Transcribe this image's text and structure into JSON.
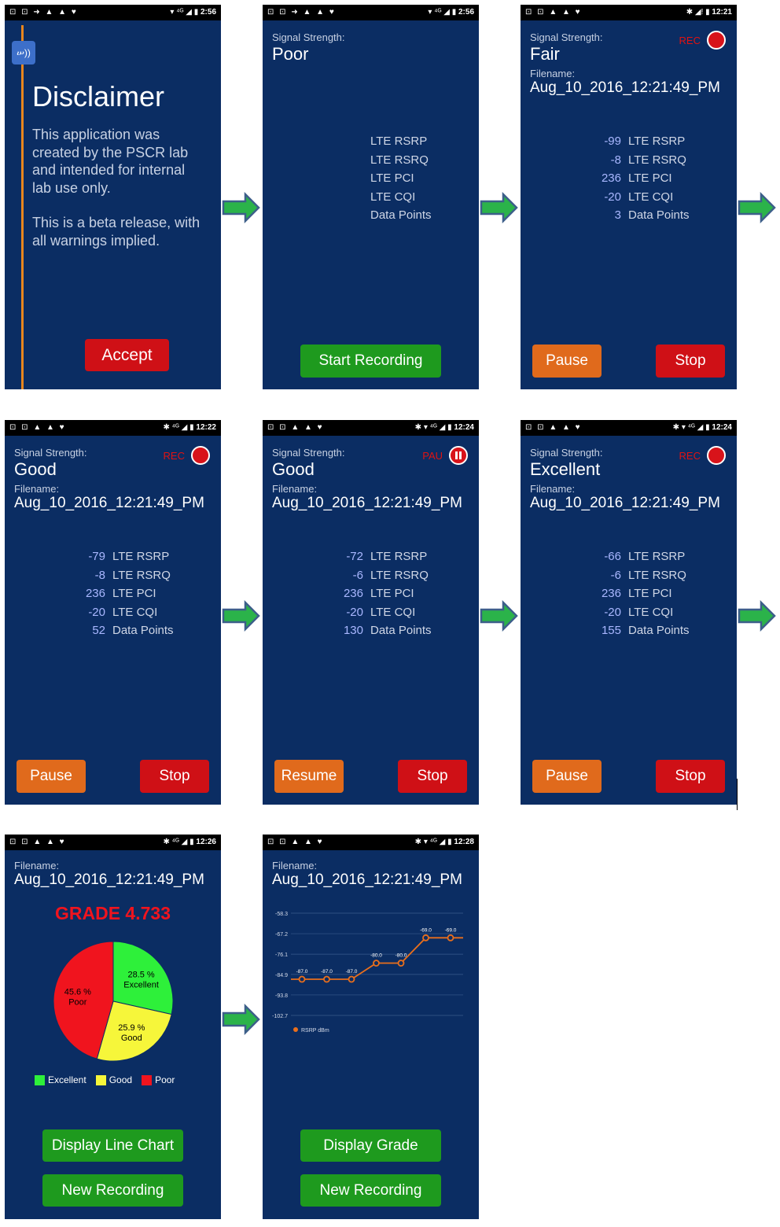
{
  "status_bars": {
    "s1": {
      "icons": "⊡ ⊡ ➜ ▲ ▲ ♥",
      "time": "2:56",
      "right": "▾ ⁴ᴳ ◢ ▮"
    },
    "s2": {
      "icons": "⊡ ⊡ ➜ ▲ ▲ ♥",
      "time": "2:56",
      "right": "▾ ⁴ᴳ ◢ ▮"
    },
    "s3": {
      "icons": "⊡ ⊡ ▲ ▲ ♥",
      "time": "12:21",
      "right": "✱ ◢! ▮"
    },
    "s4": {
      "icons": "⊡ ⊡ ▲ ▲ ♥",
      "time": "12:22",
      "right": "✱ ⁴ᴳ ◢ ▮"
    },
    "s5": {
      "icons": "⊡ ⊡ ▲ ▲ ♥",
      "time": "12:24",
      "right": "✱ ▾ ⁴ᴳ ◢ ▮"
    },
    "s6": {
      "icons": "⊡ ⊡ ▲ ▲ ♥",
      "time": "12:24",
      "right": "✱ ▾ ⁴ᴳ ◢ ▮"
    },
    "s7": {
      "icons": "⊡ ⊡ ▲ ▲ ♥",
      "time": "12:26",
      "right": "✱ ⁴ᴳ ◢ ▮"
    },
    "s8": {
      "icons": "⊡ ⊡ ▲ ▲ ♥",
      "time": "12:28",
      "right": "✱ ▾ ⁴ᴳ ◢ ▮"
    }
  },
  "disclaimer": {
    "title": "Disclaimer",
    "para1": "This application was created by the PSCR lab and intended for internal lab use only.",
    "para2": "This is a beta release, with all warnings implied.",
    "accept": "Accept"
  },
  "labels": {
    "signal_strength": "Signal Strength:",
    "filename": "Filename:",
    "rec": "REC",
    "pau": "PAU",
    "pause": "Pause",
    "resume": "Resume",
    "stop": "Stop",
    "start_recording": "Start Recording",
    "display_line_chart": "Display Line Chart",
    "display_grade": "Display Grade",
    "new_recording": "New Recording",
    "stat_keys": [
      "LTE RSRP",
      "LTE RSRQ",
      "LTE PCI",
      "LTE CQI",
      "Data Points"
    ]
  },
  "screens": {
    "s2": {
      "strength": "Poor"
    },
    "s3": {
      "strength": "Fair",
      "filename": "Aug_10_2016_12:21:49_PM",
      "values": [
        "-99",
        "-8",
        "236",
        "-20",
        "3"
      ]
    },
    "s4": {
      "strength": "Good",
      "filename": "Aug_10_2016_12:21:49_PM",
      "values": [
        "-79",
        "-8",
        "236",
        "-20",
        "52"
      ]
    },
    "s5": {
      "strength": "Good",
      "filename": "Aug_10_2016_12:21:49_PM",
      "values": [
        "-72",
        "-6",
        "236",
        "-20",
        "130"
      ]
    },
    "s6": {
      "strength": "Excellent",
      "filename": "Aug_10_2016_12:21:49_PM",
      "values": [
        "-66",
        "-6",
        "236",
        "-20",
        "155"
      ]
    },
    "s7": {
      "filename": "Aug_10_2016_12:21:49_PM",
      "grade": "GRADE 4.733"
    },
    "s8": {
      "filename": "Aug_10_2016_12:21:49_PM"
    }
  },
  "chart_data": [
    {
      "type": "pie",
      "slices": [
        {
          "label": "Excellent",
          "value": 28.5,
          "text": "28.5 %",
          "color": "#2ef03a"
        },
        {
          "label": "Good",
          "value": 25.9,
          "text": "25.9 %",
          "color": "#f6f63a"
        },
        {
          "label": "Poor",
          "value": 45.6,
          "text": "45.6 %",
          "color": "#f0141e"
        }
      ],
      "legend": [
        "Excellent",
        "Good",
        "Poor"
      ]
    },
    {
      "type": "line",
      "y_ticks": [
        "-58.3",
        "-67.2",
        "-76.1",
        "-84.9",
        "-93.8",
        "-102.7"
      ],
      "ylim": [
        -102.7,
        -58.3
      ],
      "series": [
        {
          "name": "RSRP dBm",
          "values": [
            -87.0,
            -87.0,
            -87.0,
            -80.0,
            -80.0,
            -69.0,
            -69.0
          ],
          "labels": [
            "-87.0",
            "-87.0",
            "-87.0",
            "-80.0",
            "-80.0",
            "-69.0",
            "-69.0"
          ],
          "color": "#ea6f1c"
        }
      ]
    }
  ]
}
